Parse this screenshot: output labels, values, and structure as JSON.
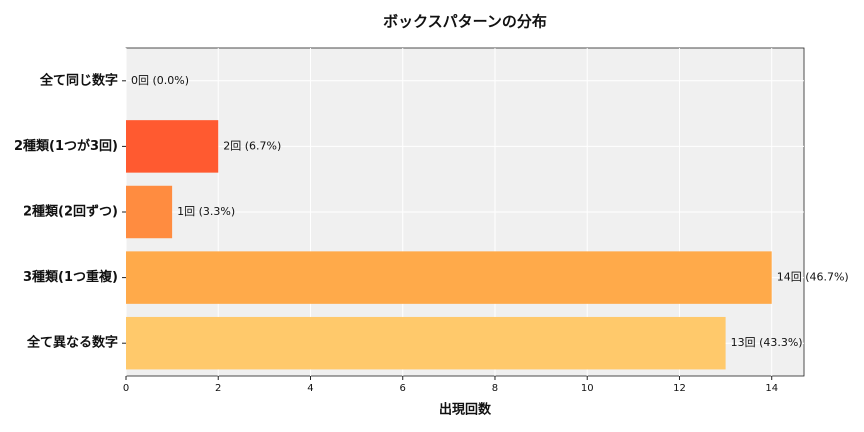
{
  "chart_data": {
    "type": "hbar",
    "title": "ボックスパターンの分布",
    "x_label": "出現回数",
    "categories": [
      "全て同じ数字",
      "2種類(1つが3回)",
      "2種類(2回ずつ)",
      "3種類(1つ重複)",
      "全て異なる数字"
    ],
    "values": [
      0,
      2,
      1,
      14,
      13
    ],
    "value_labels": [
      "0回 (0.0%)",
      "2回 (6.7%)",
      "1回 (3.3%)",
      "14回 (46.7%)",
      "13回 (43.3%)"
    ],
    "colors": [
      "#ff3a1f",
      "#ff5a30",
      "#ff8c40",
      "#ffaa4a",
      "#ffc96b"
    ],
    "xlim": [
      0,
      14.7
    ],
    "xticks": [
      0,
      2,
      4,
      6,
      8,
      10,
      12,
      14
    ],
    "grid": true
  }
}
